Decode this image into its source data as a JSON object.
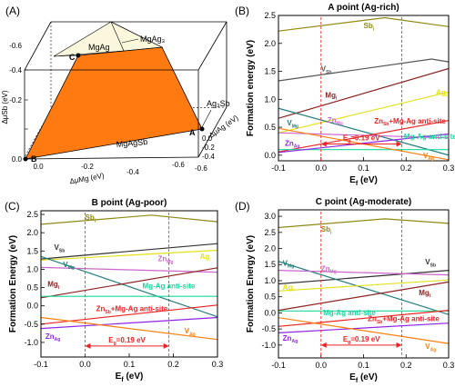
{
  "panel_a": {
    "label": "(A)",
    "colors": {
      "polygon": "#ff7b12",
      "polygon_edge": "#000000",
      "pale": "#fbf7dd"
    },
    "z_axis_label": "Δμₛᵦ (eV)",
    "z_label_text": "ΔμSb (eV)",
    "x_label_text": "ΔμMg (eV)",
    "y_label_text": "ΔμAg (eV)",
    "z_ticks": [
      "-0.6",
      "-0.4",
      "-0.2",
      "0.0"
    ],
    "x_ticks": [
      "0.0",
      "-0.2",
      "-0.4",
      "-0.6"
    ],
    "y_ticks": [
      "0.0",
      "-0.2",
      "-0.4",
      "-0.6"
    ],
    "region_labels": {
      "mgag": "MgAg",
      "mgag3": "MgAg₃",
      "ag3sb": "Ag₃Sb",
      "mgagsb": "MgAgSb"
    },
    "points": {
      "a": "A",
      "b": "B",
      "c": "C"
    }
  },
  "chart_data": [
    {
      "type": "line",
      "panel": "(B)",
      "title": "A point (Ag-rich)",
      "xlabel": "E_f (eV)",
      "ylabel": "Formation energy (eV)",
      "xlim": [
        -0.1,
        0.3
      ],
      "ylim": [
        -0.1,
        2.5
      ],
      "xticks": [
        "-0.1",
        "0.0",
        "0.1",
        "0.2",
        "0.3"
      ],
      "yticks": [
        "0.0",
        "0.5",
        "1.0",
        "1.5",
        "2.0",
        "2.5"
      ],
      "grid": false,
      "gap_annotation": {
        "text": "E_g=0.19 eV",
        "from": 0.0,
        "to": 0.19,
        "y": 0.2
      },
      "series": [
        {
          "name": "Sb_i",
          "color": "#8f8a14",
          "x": [
            -0.1,
            0.15,
            0.3
          ],
          "y": [
            2.22,
            2.46,
            2.3
          ],
          "label": {
            "text": "Sb_i",
            "x": 0.1,
            "y": 2.27
          }
        },
        {
          "name": "V_Sb",
          "color": "#555555",
          "x": [
            -0.1,
            0.26,
            0.3
          ],
          "y": [
            1.33,
            1.72,
            1.67
          ],
          "label": {
            "text": "V_Sb",
            "x": 0.0,
            "y": 1.5
          }
        },
        {
          "name": "Mg_i",
          "color": "#8c2222",
          "x": [
            -0.1,
            0.3
          ],
          "y": [
            0.66,
            1.55
          ],
          "label": {
            "text": "Mg_i",
            "x": 0.01,
            "y": 1.03
          }
        },
        {
          "name": "Ag_i",
          "color": "#e2e21a",
          "x": [
            -0.1,
            0.3
          ],
          "y": [
            0.4,
            1.13
          ],
          "label": {
            "text": "Ag_i",
            "x": 0.27,
            "y": 1.08
          }
        },
        {
          "name": "V_Mg",
          "color": "#1f7c7c",
          "x": [
            -0.1,
            0.3
          ],
          "y": [
            0.84,
            0.0
          ],
          "label": {
            "text": "V_Mg",
            "x": -0.08,
            "y": 0.53
          }
        },
        {
          "name": "Zn_Mg",
          "color": "#cc66cc",
          "x": [
            -0.1,
            0.3
          ],
          "y": [
            0.4,
            0.31
          ],
          "label": {
            "text": "Zn_Mg",
            "x": 0.015,
            "y": 0.58
          }
        },
        {
          "name": "Zn_Sb+Mg-Ag anti-site",
          "color": "#ee2222",
          "x": [
            -0.1,
            0.3
          ],
          "y": [
            0.06,
            0.62
          ],
          "label": {
            "text": "Zn_Sb+Mg-Ag anti-site",
            "x": 0.125,
            "y": 0.57
          }
        },
        {
          "name": "Mg-Ag anti-site",
          "color": "#17d89a",
          "x": [
            -0.1,
            0.3
          ],
          "y": [
            0.1,
            0.1
          ],
          "label": {
            "text": "Mg-Ag anti-site",
            "x": 0.195,
            "y": 0.29
          }
        },
        {
          "name": "Zn_Ag",
          "color": "#8e24e8",
          "x": [
            -0.1,
            0.3
          ],
          "y": [
            0.05,
            0.38
          ],
          "label": {
            "text": "Zn_Ag",
            "x": -0.085,
            "y": 0.17
          }
        },
        {
          "name": "V_Ag",
          "color": "#ff7f0e",
          "x": [
            -0.1,
            0.3
          ],
          "y": [
            0.48,
            -0.08
          ],
          "label": {
            "text": "V_Ag",
            "x": 0.24,
            "y": -0.05
          }
        }
      ]
    },
    {
      "type": "line",
      "panel": "(C)",
      "title": "B point (Ag-poor)",
      "xlabel": "E_f (eV)",
      "ylabel": "Formation Energy (eV)",
      "xlim": [
        -0.1,
        0.3
      ],
      "ylim": [
        -1.4,
        2.6
      ],
      "xticks": [
        "-0.1",
        "0.0",
        "0.1",
        "0.2",
        "0.3"
      ],
      "yticks": [
        "-1.0",
        "-0.5",
        "0.0",
        "0.5",
        "1.0",
        "1.5",
        "2.0",
        "2.5"
      ],
      "grid": false,
      "gap_annotation": {
        "text": "E_g=0.19 eV",
        "from": 0.0,
        "to": 0.19,
        "y": -1.1
      },
      "series": [
        {
          "name": "Sb_i",
          "color": "#8f8a14",
          "x": [
            -0.1,
            0.15,
            0.3
          ],
          "y": [
            2.23,
            2.48,
            2.3
          ],
          "label": {
            "text": "Sb_i",
            "x": 0.0,
            "y": 2.35
          }
        },
        {
          "name": "V_Sb",
          "color": "#333333",
          "x": [
            -0.1,
            0.3
          ],
          "y": [
            1.28,
            1.7
          ],
          "label": {
            "text": "V_Sb",
            "x": -0.07,
            "y": 1.53
          }
        },
        {
          "name": "Ag_i",
          "color": "#e2e21a",
          "x": [
            -0.1,
            0.3
          ],
          "y": [
            1.25,
            1.52
          ],
          "label": {
            "text": "Ag_i",
            "x": 0.26,
            "y": 1.28
          }
        },
        {
          "name": "V_Mg",
          "color": "#1f7c7c",
          "x": [
            -0.1,
            0.3
          ],
          "y": [
            1.35,
            -0.3
          ],
          "label": {
            "text": "V_Mg",
            "x": -0.05,
            "y": 1.06
          }
        },
        {
          "name": "Zn_Mg",
          "color": "#cc66cc",
          "x": [
            -0.1,
            0.3
          ],
          "y": [
            1.05,
            0.92
          ],
          "label": {
            "text": "Zn_Mg",
            "x": 0.165,
            "y": 1.22
          }
        },
        {
          "name": "Mg_i",
          "color": "#8c2222",
          "x": [
            -0.1,
            0.3
          ],
          "y": [
            0.22,
            1.04
          ],
          "label": {
            "text": "Mg_i",
            "x": -0.085,
            "y": 0.52
          }
        },
        {
          "name": "Mg-Ag anti-site",
          "color": "#17d89a",
          "x": [
            -0.1,
            0.3
          ],
          "y": [
            0.26,
            0.26
          ],
          "label": {
            "text": "Mg-Ag anti-site",
            "x": 0.13,
            "y": 0.48
          }
        },
        {
          "name": "Zn_Sb+Mg-Ag anti-site",
          "color": "#ee2222",
          "x": [
            -0.1,
            0.3
          ],
          "y": [
            -0.5,
            0.02
          ],
          "label": {
            "text": "Zn_Sb+Mg-Ag anti-site",
            "x": 0.025,
            "y": -0.15
          }
        },
        {
          "name": "Zn_Ag",
          "color": "#8e24e8",
          "x": [
            -0.1,
            0.3
          ],
          "y": [
            -0.62,
            -0.32
          ],
          "label": {
            "text": "Zn_Ag",
            "x": -0.09,
            "y": -0.9
          }
        },
        {
          "name": "V_Ag",
          "color": "#ff7f0e",
          "x": [
            -0.1,
            0.3
          ],
          "y": [
            -0.32,
            -0.92
          ],
          "label": {
            "text": "V_Ag",
            "x": 0.225,
            "y": -0.76
          }
        }
      ]
    },
    {
      "type": "line",
      "panel": "(D)",
      "title": "C point (Ag-moderate)",
      "xlabel": "E_f (eV)",
      "ylabel": "Formation Energy (eV)",
      "xlim": [
        -0.1,
        0.3
      ],
      "ylim": [
        -1.4,
        3.2
      ],
      "xticks": [
        "-0.1",
        "0.0",
        "0.1",
        "0.2",
        "0.3"
      ],
      "yticks": [
        "-1.0",
        "-0.5",
        "0.0",
        "0.5",
        "1.0",
        "1.5",
        "2.0",
        "2.5",
        "3.0"
      ],
      "grid": false,
      "gap_annotation": {
        "text": "E_g=0.19 eV",
        "from": 0.0,
        "to": 0.19,
        "y": -1.0
      },
      "series": [
        {
          "name": "Sb_i",
          "color": "#8f8a14",
          "x": [
            -0.1,
            0.15,
            0.3
          ],
          "y": [
            2.65,
            2.92,
            2.78
          ],
          "label": {
            "text": "Sb_i",
            "x": 0.0,
            "y": 2.52
          }
        },
        {
          "name": "V_Sb",
          "color": "#333333",
          "x": [
            -0.1,
            0.3
          ],
          "y": [
            0.9,
            1.32
          ],
          "label": {
            "text": "V_Sb",
            "x": 0.245,
            "y": 1.5
          }
        },
        {
          "name": "V_Mg",
          "color": "#1f7c7c",
          "x": [
            -0.1,
            0.3
          ],
          "y": [
            1.6,
            -0.05
          ],
          "label": {
            "text": "V_Mg",
            "x": -0.09,
            "y": 1.47
          }
        },
        {
          "name": "Zn_Mg",
          "color": "#cc66cc",
          "x": [
            -0.1,
            0.3
          ],
          "y": [
            1.32,
            1.18
          ],
          "label": {
            "text": "Zn_Mg",
            "x": 0.0,
            "y": 1.3
          }
        },
        {
          "name": "Ag_i",
          "color": "#e2e21a",
          "x": [
            -0.1,
            0.3
          ],
          "y": [
            0.68,
            1.02
          ],
          "label": {
            "text": "Ag_i",
            "x": -0.09,
            "y": 0.72
          }
        },
        {
          "name": "Mg_i",
          "color": "#8c2222",
          "x": [
            -0.1,
            0.3
          ],
          "y": [
            0.08,
            0.96
          ],
          "label": {
            "text": "Mg_i",
            "x": 0.23,
            "y": 0.55
          }
        },
        {
          "name": "Mg-Ag anti-site",
          "color": "#17d89a",
          "x": [
            -0.1,
            0.3
          ],
          "y": [
            0.06,
            0.06
          ],
          "label": {
            "text": "Mg-Ag anti-site",
            "x": 0.005,
            "y": -0.08
          }
        },
        {
          "name": "Zn_Sb+Mg-Ag anti-site",
          "color": "#ee2222",
          "x": [
            -0.1,
            0.3
          ],
          "y": [
            -0.42,
            0.08
          ],
          "label": {
            "text": "Zn_Sb+Mg-Ag anti-site",
            "x": 0.11,
            "y": -0.26
          }
        },
        {
          "name": "Zn_Ag",
          "color": "#8e24e8",
          "x": [
            -0.1,
            0.3
          ],
          "y": [
            -0.62,
            -0.32
          ],
          "label": {
            "text": "Zn_Ag",
            "x": -0.09,
            "y": -0.86
          }
        },
        {
          "name": "V_Ag",
          "color": "#ff7f0e",
          "x": [
            -0.1,
            0.3
          ],
          "y": [
            -0.15,
            -0.95
          ],
          "label": {
            "text": "V_Ag",
            "x": 0.245,
            "y": -1.12
          }
        }
      ]
    }
  ]
}
